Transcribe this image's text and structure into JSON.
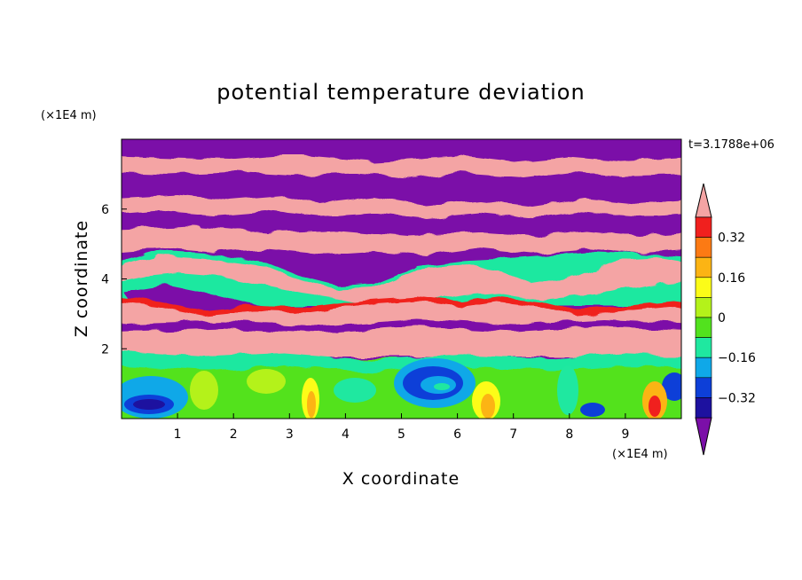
{
  "chart_data": {
    "type": "heatmap",
    "title": "potential temperature deviation",
    "xlabel": "X coordinate",
    "ylabel": "Z coordinate",
    "x_unit": "(×1E4 m)",
    "y_unit": "(×1E4 m)",
    "time_label": "t=3.1788e+06",
    "xlim": [
      0,
      10
    ],
    "ylim": [
      0,
      8
    ],
    "x_ticks": [
      "1",
      "2",
      "3",
      "4",
      "5",
      "6",
      "7",
      "8",
      "9"
    ],
    "y_ticks": [
      "2",
      "4",
      "6"
    ],
    "colorbar": {
      "colors": [
        "#7b0fa8",
        "#1d119f",
        "#0d3fd8",
        "#0fa8e8",
        "#1fe8a0",
        "#52e21e",
        "#b4f21a",
        "#fcfc18",
        "#fcb414",
        "#fc7a14",
        "#f0201e",
        "#f4a4a4"
      ],
      "tick_labels": [
        "0.32",
        "0.16",
        "0",
        "−0.16",
        "−0.32"
      ],
      "extend": "both"
    },
    "field_bands_top_down": [
      {
        "z_top": 8.0,
        "z_bottom": 7.2,
        "value": "low"
      },
      {
        "z_top": 7.2,
        "z_bottom": 6.8,
        "value": "high"
      },
      {
        "z_top": 6.8,
        "z_bottom": 6.2,
        "value": "low"
      },
      {
        "z_top": 6.2,
        "z_bottom": 5.7,
        "value": "high"
      },
      {
        "z_top": 5.7,
        "z_bottom": 5.2,
        "value": "low"
      },
      {
        "z_top": 5.2,
        "z_bottom": 4.3,
        "value": "high"
      },
      {
        "z_top": 4.3,
        "z_bottom": 2.9,
        "value": "low"
      },
      {
        "z_top": 2.9,
        "z_bottom": 1.7,
        "value": "high"
      },
      {
        "z_top": 1.7,
        "z_bottom": 0.0,
        "value": "mixed"
      }
    ]
  }
}
